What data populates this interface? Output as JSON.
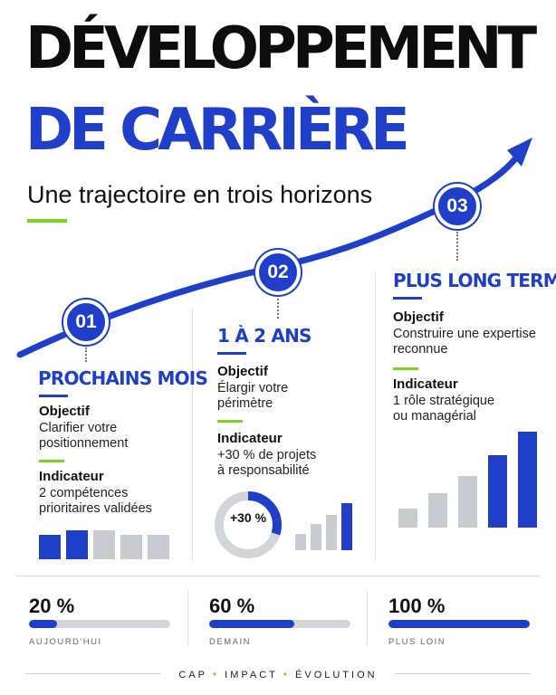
{
  "header": {
    "title_line1": "DÉVELOPPEMENT",
    "title_line2": "DE CARRIÈRE",
    "subtitle": "Une trajectoire en trois horizons"
  },
  "steps": [
    {
      "number": "01",
      "heading": "PROCHAINS MOIS",
      "objective_label": "Objectif",
      "objective_text": [
        "Clarifier votre",
        "positionnement"
      ],
      "indicator_label": "Indicateur",
      "indicator_text": [
        "2 compétences",
        "prioritaires validées"
      ],
      "bars": [
        {
          "level": 0.75,
          "highlight": true
        },
        {
          "level": 0.9,
          "highlight": true
        },
        {
          "level": 0.9,
          "highlight": false
        },
        {
          "level": 0.75,
          "highlight": false
        },
        {
          "level": 0.75,
          "highlight": false
        }
      ]
    },
    {
      "number": "02",
      "heading": "1 À 2 ANS",
      "objective_label": "Objectif",
      "objective_text": [
        "Élargir votre",
        "périmètre"
      ],
      "indicator_label": "Indicateur",
      "indicator_text": [
        "+30 % de projets",
        "à responsabilité"
      ],
      "ring_label": "+30 %",
      "ring_value": 0.3,
      "bars": [
        {
          "level": 0.35,
          "highlight": false
        },
        {
          "level": 0.55,
          "highlight": false
        },
        {
          "level": 0.75,
          "highlight": false
        },
        {
          "level": 1.0,
          "highlight": true
        }
      ]
    },
    {
      "number": "03",
      "heading": "PLUS LONG TERME",
      "objective_label": "Objectif",
      "objective_text": [
        "Construire une expertise",
        "reconnue"
      ],
      "indicator_label": "Indicateur",
      "indicator_text": [
        "1 rôle stratégique",
        "ou managérial"
      ],
      "bars": [
        {
          "level": 0.2,
          "highlight": false
        },
        {
          "level": 0.36,
          "highlight": false
        },
        {
          "level": 0.54,
          "highlight": false
        },
        {
          "level": 0.75,
          "highlight": true
        },
        {
          "level": 1.0,
          "highlight": true
        }
      ]
    }
  ],
  "stats": [
    {
      "value": "20 %",
      "progress": 0.2,
      "caption": "AUJOURD'HUI"
    },
    {
      "value": "60 %",
      "progress": 0.6,
      "caption": "DEMAIN"
    },
    {
      "value": "100 %",
      "progress": 1.0,
      "caption": "PLUS LOIN"
    }
  ],
  "footer": {
    "items": [
      "CAP",
      "IMPACT",
      "ÉVOLUTION"
    ],
    "separator": "•"
  },
  "colors": {
    "accent_blue": "#1f3fc8",
    "accent_green": "#7ed321",
    "inactive_grey": "#c9cbd1"
  }
}
